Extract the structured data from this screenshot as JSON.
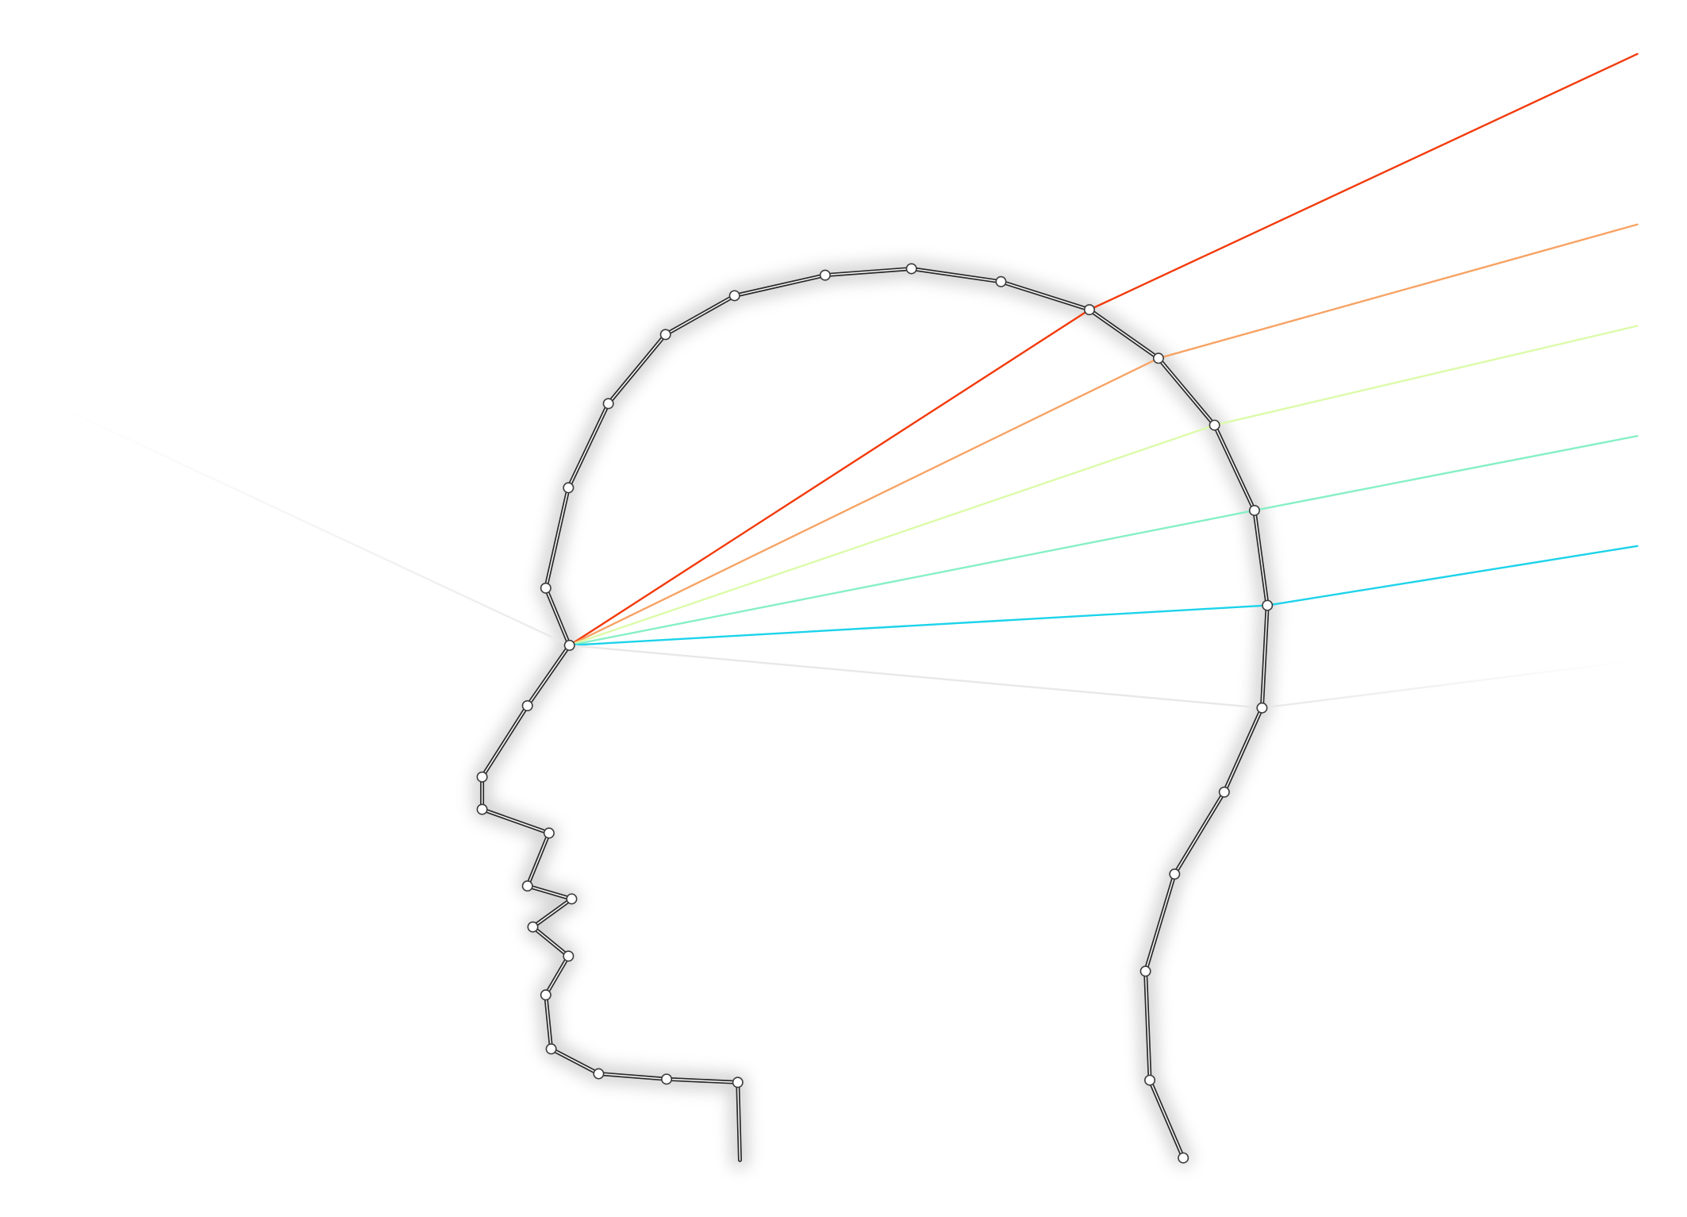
{
  "scene": {
    "subject": "head-profile-outline",
    "outline_color": "#2a2a2a",
    "node_color": "#ffffff",
    "background": "#ffffff"
  },
  "rays": [
    {
      "color": "#f23a0b",
      "opacity": 1.0
    },
    {
      "color": "#f7a364",
      "opacity": 1.0
    },
    {
      "color": "#dcfbaa",
      "opacity": 1.0
    },
    {
      "color": "#87f0c5",
      "opacity": 1.0
    },
    {
      "color": "#1cd3ea",
      "opacity": 1.0
    },
    {
      "color": "#e6e6e6",
      "opacity": 0.9
    },
    {
      "color": "#e8e8e8",
      "opacity": 0.6
    }
  ]
}
